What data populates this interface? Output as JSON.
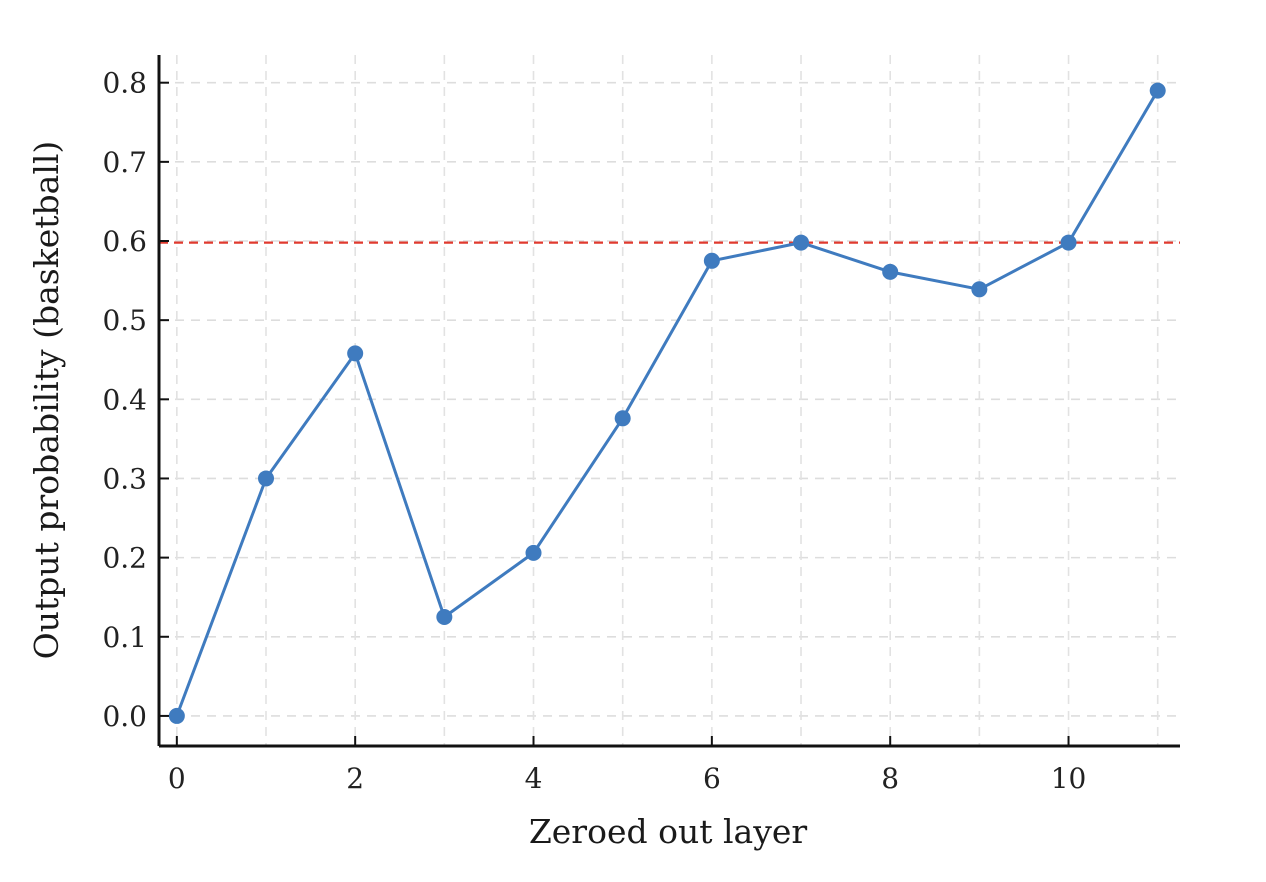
{
  "chart_data": {
    "type": "line",
    "title": "",
    "xlabel": "Zeroed out layer",
    "ylabel": "Output probability (basketball)",
    "xlim": [
      -0.2,
      11.25
    ],
    "ylim": [
      -0.038,
      0.835
    ],
    "x_ticks": [
      "0",
      "2",
      "4",
      "6",
      "8",
      "10"
    ],
    "y_ticks": [
      "0.0",
      "0.1",
      "0.2",
      "0.3",
      "0.4",
      "0.5",
      "0.6",
      "0.7",
      "0.8"
    ],
    "x_tick_values": [
      0,
      2,
      4,
      6,
      8,
      10
    ],
    "y_tick_values": [
      0.0,
      0.1,
      0.2,
      0.3,
      0.4,
      0.5,
      0.6,
      0.7,
      0.8
    ],
    "grid": true,
    "series": [
      {
        "x": [
          0,
          1,
          2,
          3,
          4,
          5,
          6,
          7,
          8,
          9,
          10,
          11
        ],
        "y": [
          0.0,
          0.3,
          0.458,
          0.125,
          0.206,
          0.376,
          0.575,
          0.598,
          0.561,
          0.539,
          0.598,
          0.79
        ],
        "color": "#3f7bbf",
        "marker": "circle"
      }
    ],
    "reference_lines": [
      {
        "orientation": "horizontal",
        "y": 0.598,
        "style": "dashed",
        "color": "#e03a2f"
      }
    ]
  }
}
